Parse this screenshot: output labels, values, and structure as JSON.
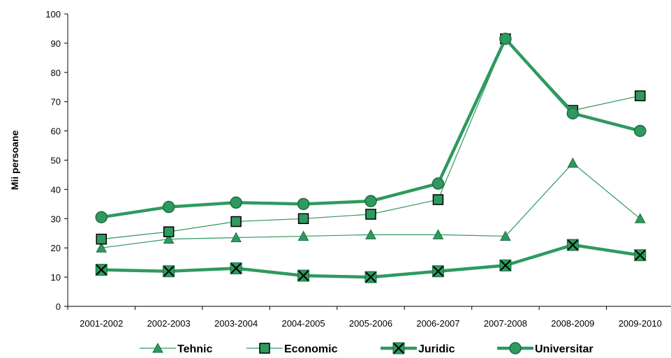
{
  "chart_data": {
    "type": "line",
    "title": "",
    "xlabel": "",
    "ylabel": "Mii persoane",
    "ylim": [
      0,
      100
    ],
    "yticks": [
      0,
      10,
      20,
      30,
      40,
      50,
      60,
      70,
      80,
      90,
      100
    ],
    "grid": false,
    "legend_position": "bottom",
    "categories": [
      "2001-2002",
      "2002-2003",
      "2003-2004",
      "2004-2005",
      "2005-2006",
      "2006-2007",
      "2007-2008",
      "2008-2009",
      "2009-2010"
    ],
    "series": [
      {
        "name": "Tehnic",
        "marker": "triangle",
        "color": "#2e9a5e",
        "values": [
          20,
          23,
          23.5,
          24,
          24.5,
          24.5,
          24,
          49,
          30
        ]
      },
      {
        "name": "Economic",
        "marker": "square",
        "color": "#2e9a5e",
        "values": [
          23,
          25.5,
          29,
          30,
          31.5,
          36.5,
          91.5,
          67,
          72
        ]
      },
      {
        "name": "Juridic",
        "marker": "x",
        "color": "#2e9a5e",
        "values": [
          12.5,
          12,
          13,
          10.5,
          10,
          12,
          14,
          21,
          17.5
        ]
      },
      {
        "name": "Universitar",
        "marker": "circle",
        "color": "#2e9a5e",
        "values": [
          30.5,
          34,
          35.5,
          35,
          36,
          42,
          91.5,
          66,
          60
        ]
      }
    ]
  }
}
